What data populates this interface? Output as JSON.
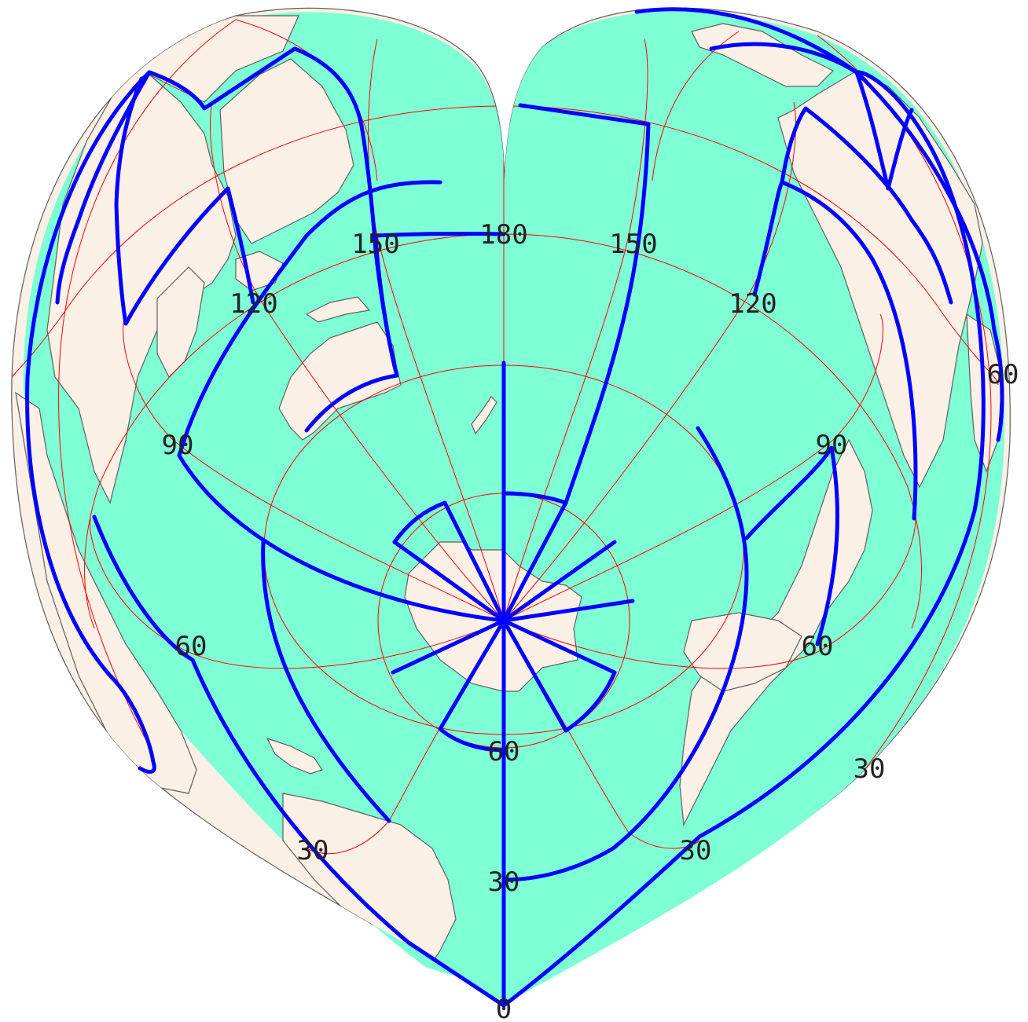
{
  "colors": {
    "ocean": "#7fffd4",
    "land": "#faf0e6",
    "coastline": "#5f5f5f",
    "graticule": "#ff0000",
    "boundary": "#0000ff",
    "label": "#222222"
  },
  "map": {
    "projection": "heart-shaped (Bonne-like), south-polar aspect",
    "labels": {
      "lon_180": "180",
      "lon_150_left": "150",
      "lon_150_right": "150",
      "lon_120_left": "120",
      "lon_120_right": "120",
      "lon_90_left": "90",
      "lon_90_right": "90",
      "lon_60_left": "60",
      "lon_60_right": "60",
      "lon_60_far_right": "60",
      "lat_60": "60",
      "lat_30_center": "30",
      "lat_30_left": "30",
      "lat_30_right": "30",
      "lat_30_far_right": "30",
      "lon_0": "0"
    }
  }
}
